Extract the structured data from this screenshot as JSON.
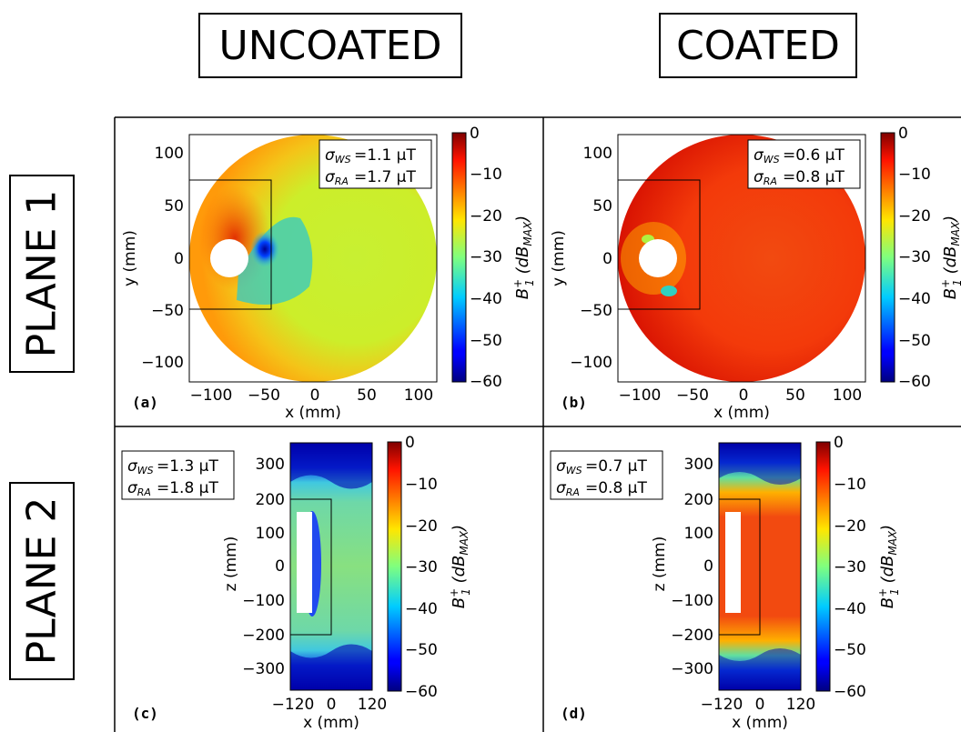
{
  "columns": [
    "UNCOATED",
    "COATED"
  ],
  "rows": [
    "PLANE 1",
    "PLANE 2"
  ],
  "colors": {
    "jet_low": "#00007f",
    "jet_high": "#7f0000"
  },
  "chart_data": [
    {
      "type": "heatmap",
      "panel": "(a)",
      "column": "UNCOATED",
      "row": "PLANE 1",
      "xlabel": "x (mm)",
      "ylabel": "y (mm)",
      "xticks": [
        "−100",
        "−50",
        "0",
        "50",
        "100"
      ],
      "yticks": [
        "100",
        "50",
        "0",
        "−50",
        "−100"
      ],
      "colorbar": {
        "label": "B1+ (dB_MAX)",
        "ticks": [
          "0",
          "−10",
          "−20",
          "−30",
          "−40",
          "−50",
          "−60"
        ],
        "range": [
          -60,
          0
        ]
      },
      "annotation": {
        "sigma_ws": "=1.1 μT",
        "sigma_ra": "=1.7 μT"
      }
    },
    {
      "type": "heatmap",
      "panel": "(b)",
      "column": "COATED",
      "row": "PLANE 1",
      "xlabel": "x (mm)",
      "ylabel": "y (mm)",
      "xticks": [
        "−100",
        "−50",
        "0",
        "50",
        "100"
      ],
      "yticks": [
        "100",
        "50",
        "0",
        "−50",
        "−100"
      ],
      "colorbar": {
        "label": "B1+ (dB_MAX)",
        "ticks": [
          "0",
          "−10",
          "−20",
          "−30",
          "−40",
          "−50",
          "−60"
        ],
        "range": [
          -60,
          0
        ]
      },
      "annotation": {
        "sigma_ws": "=0.6 μT",
        "sigma_ra": "=0.8 μT"
      }
    },
    {
      "type": "heatmap",
      "panel": "(c)",
      "column": "UNCOATED",
      "row": "PLANE 2",
      "xlabel": "x (mm)",
      "ylabel": "z (mm)",
      "xticks": [
        "−120",
        "0",
        "120"
      ],
      "yticks": [
        "300",
        "200",
        "100",
        "0",
        "−100",
        "−200",
        "−300"
      ],
      "colorbar": {
        "label": "B1+ (dB_MAX)",
        "ticks": [
          "0",
          "−10",
          "−20",
          "−30",
          "−40",
          "−50",
          "−60"
        ],
        "range": [
          -60,
          0
        ]
      },
      "annotation": {
        "sigma_ws": "=1.3 μT",
        "sigma_ra": "=1.8 μT"
      }
    },
    {
      "type": "heatmap",
      "panel": "(d)",
      "column": "COATED",
      "row": "PLANE 2",
      "xlabel": "x (mm)",
      "ylabel": "z (mm)",
      "xticks": [
        "−120",
        "0",
        "120"
      ],
      "yticks": [
        "300",
        "200",
        "100",
        "0",
        "−100",
        "−200",
        "−300"
      ],
      "colorbar": {
        "label": "B1+ (dB_MAX)",
        "ticks": [
          "0",
          "−10",
          "−20",
          "−30",
          "−40",
          "−50",
          "−60"
        ],
        "range": [
          -60,
          0
        ]
      },
      "annotation": {
        "sigma_ws": "=0.7 μT",
        "sigma_ra": "=0.8 μT"
      }
    }
  ]
}
